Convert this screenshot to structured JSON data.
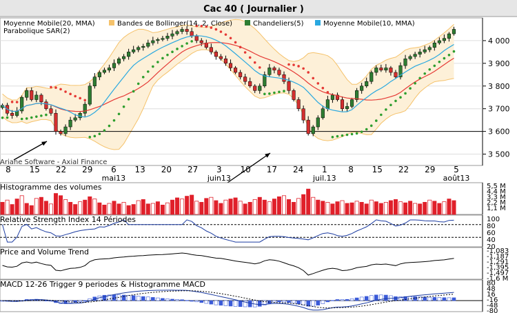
{
  "window": {
    "title": "Cac 40  ( Journalier )",
    "title_bg": "#d9d9d9"
  },
  "credit": "Ariane Software - Axial Finance",
  "colors": {
    "up": "#2e7d32",
    "down": "#d32f2f",
    "ma20": "#e53935",
    "ma10": "#29a8e0",
    "bollinger_fill": "#fdf0d8",
    "bollinger_line": "#f5c26b",
    "sar": "#e53935",
    "sar_bull": "#2e9e2e",
    "volume": "#e0202a",
    "indicator_line": "#1a3aa0",
    "pvt_line": "#000000",
    "macd_hist": "#3a5ad8"
  },
  "legend": [
    {
      "name": "Moyenne Mobile(20, MMA)",
      "swatch": "#e53935"
    },
    {
      "name": "Bandes de Bollinger(14, 2, Close)",
      "swatch": "#f5c26b"
    },
    {
      "name": "Chandeliers(5)",
      "swatch": "#2e7d32"
    },
    {
      "name": "Moyenne Mobile(10, MMA)",
      "swatch": "#29a8e0"
    }
  ],
  "legend_line2": "Parabolique SAR(2)",
  "chart_data": {
    "type": "line",
    "price_axis": {
      "min": 3450,
      "max": 4100,
      "ticks": [
        "3 500",
        "3 600",
        "3 700",
        "3 800",
        "3 900",
        "4 000"
      ],
      "tick_values": [
        3500,
        3600,
        3700,
        3800,
        3900,
        4000
      ]
    },
    "support_level": 3600,
    "date_ticks": [
      "8",
      "15",
      "22",
      "29",
      "6",
      "13",
      "20",
      "27",
      "3",
      "10",
      "17",
      "24",
      "1",
      "8",
      "15",
      "22",
      "29",
      "5"
    ],
    "month_labels": [
      {
        "label": "mai13",
        "at_tick": 4
      },
      {
        "label": "juin13",
        "at_tick": 8
      },
      {
        "label": "juil.13",
        "at_tick": 12
      },
      {
        "label": "août13",
        "at_tick": 17
      }
    ],
    "close": [
      3715,
      3680,
      3670,
      3690,
      3750,
      3780,
      3740,
      3760,
      3730,
      3700,
      3680,
      3600,
      3590,
      3620,
      3650,
      3660,
      3680,
      3720,
      3800,
      3840,
      3860,
      3870,
      3880,
      3900,
      3920,
      3930,
      3950,
      3960,
      3970,
      3975,
      3990,
      4000,
      4005,
      4010,
      4020,
      4030,
      4040,
      4050,
      4040,
      4020,
      4000,
      3990,
      3970,
      3950,
      3930,
      3920,
      3900,
      3880,
      3860,
      3840,
      3820,
      3800,
      3780,
      3800,
      3850,
      3880,
      3870,
      3850,
      3820,
      3780,
      3740,
      3700,
      3650,
      3590,
      3620,
      3660,
      3700,
      3740,
      3760,
      3740,
      3700,
      3710,
      3740,
      3780,
      3800,
      3820,
      3860,
      3880,
      3870,
      3880,
      3860,
      3840,
      3890,
      3920,
      3930,
      3940,
      3950,
      3960,
      3970,
      3990,
      4000,
      4010,
      4030,
      4050
    ],
    "volume_axis": {
      "ticks": [
        "5,5 M",
        "4,4 M",
        "3,3 M",
        "2,2 M",
        "1,1 M"
      ]
    },
    "volume": [
      2.2,
      2.6,
      1.8,
      2.8,
      3.4,
      2.0,
      1.6,
      2.9,
      3.1,
      2.4,
      1.9,
      3.8,
      3.4,
      2.7,
      2.2,
      1.8,
      2.3,
      2.6,
      3.2,
      2.8,
      2.1,
      1.7,
      2.0,
      2.4,
      1.9,
      2.2,
      1.6,
      1.8,
      2.5,
      2.7,
      1.9,
      2.0,
      2.3,
      1.7,
      2.1,
      2.6,
      3.0,
      2.8,
      3.3,
      3.5,
      2.4,
      2.2,
      2.9,
      3.1,
      2.5,
      2.0,
      2.6,
      2.8,
      3.0,
      2.4,
      1.9,
      2.2,
      2.7,
      3.1,
      2.6,
      2.3,
      2.8,
      3.2,
      3.4,
      2.7,
      2.2,
      2.9,
      3.6,
      4.6,
      3.1,
      2.6,
      2.4,
      2.2,
      1.9,
      2.3,
      2.5,
      2.0,
      2.1,
      2.4,
      2.2,
      1.9,
      2.6,
      2.3,
      2.0,
      2.2,
      2.5,
      2.7,
      2.3,
      2.1,
      2.4,
      2.0,
      1.9,
      2.2,
      2.6,
      2.4,
      2.0,
      2.3,
      2.8,
      2.5
    ],
    "rsi_axis": {
      "ticks": [
        "100",
        "80",
        "60",
        "40",
        "20"
      ],
      "levels": [
        70,
        30
      ]
    },
    "pvt_axis": {
      "ticks": [
        "-1,083",
        "-1,187",
        "-1,291",
        "-1,395",
        "-1,497",
        "-1,6 M"
      ]
    },
    "macd_axis": {
      "ticks": [
        "80",
        "48",
        "16",
        "-16",
        "-48",
        "-80"
      ]
    }
  },
  "panels": [
    {
      "title": "Histogramme des volumes"
    },
    {
      "title": "Relative Strength Index 14 Périodes"
    },
    {
      "title": "Price and Volume Trend"
    },
    {
      "title": "MACD 12-26  Trigger 9 periodes & Histogramme MACD"
    }
  ]
}
